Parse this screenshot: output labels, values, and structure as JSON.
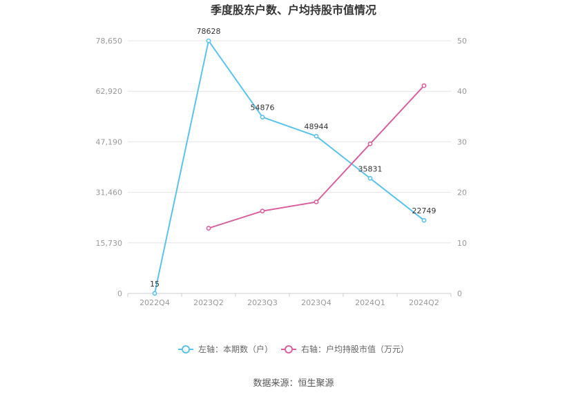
{
  "chart_data": {
    "type": "line",
    "title": "季度股东户数、户均持股市值情况",
    "categories": [
      "2022Q4",
      "2023Q2",
      "2023Q3",
      "2023Q4",
      "2024Q1",
      "2024Q2"
    ],
    "y_left": {
      "ticks": [
        "0",
        "15,730",
        "31,460",
        "47,190",
        "62,920",
        "78,650"
      ],
      "ylim": [
        0,
        78650
      ]
    },
    "y_right": {
      "ticks": [
        "0",
        "10",
        "20",
        "30",
        "40",
        "50"
      ],
      "ylim": [
        0,
        50
      ]
    },
    "grid": true,
    "legend_position": "bottom",
    "series": [
      {
        "name": "左轴：本期数（户）",
        "axis": "left",
        "color": "#5bc2ee",
        "values": [
          15,
          78628,
          54876,
          48944,
          35831,
          22749
        ],
        "labels": [
          "15",
          "78628",
          "54876",
          "48944",
          "35831",
          "22749"
        ]
      },
      {
        "name": "右轴：户均持股市值（万元）",
        "axis": "right",
        "color": "#d9609f",
        "values": [
          null,
          12.9,
          16.3,
          18.1,
          29.6,
          41.1
        ]
      }
    ]
  },
  "source_text": "数据来源：恒生聚源"
}
